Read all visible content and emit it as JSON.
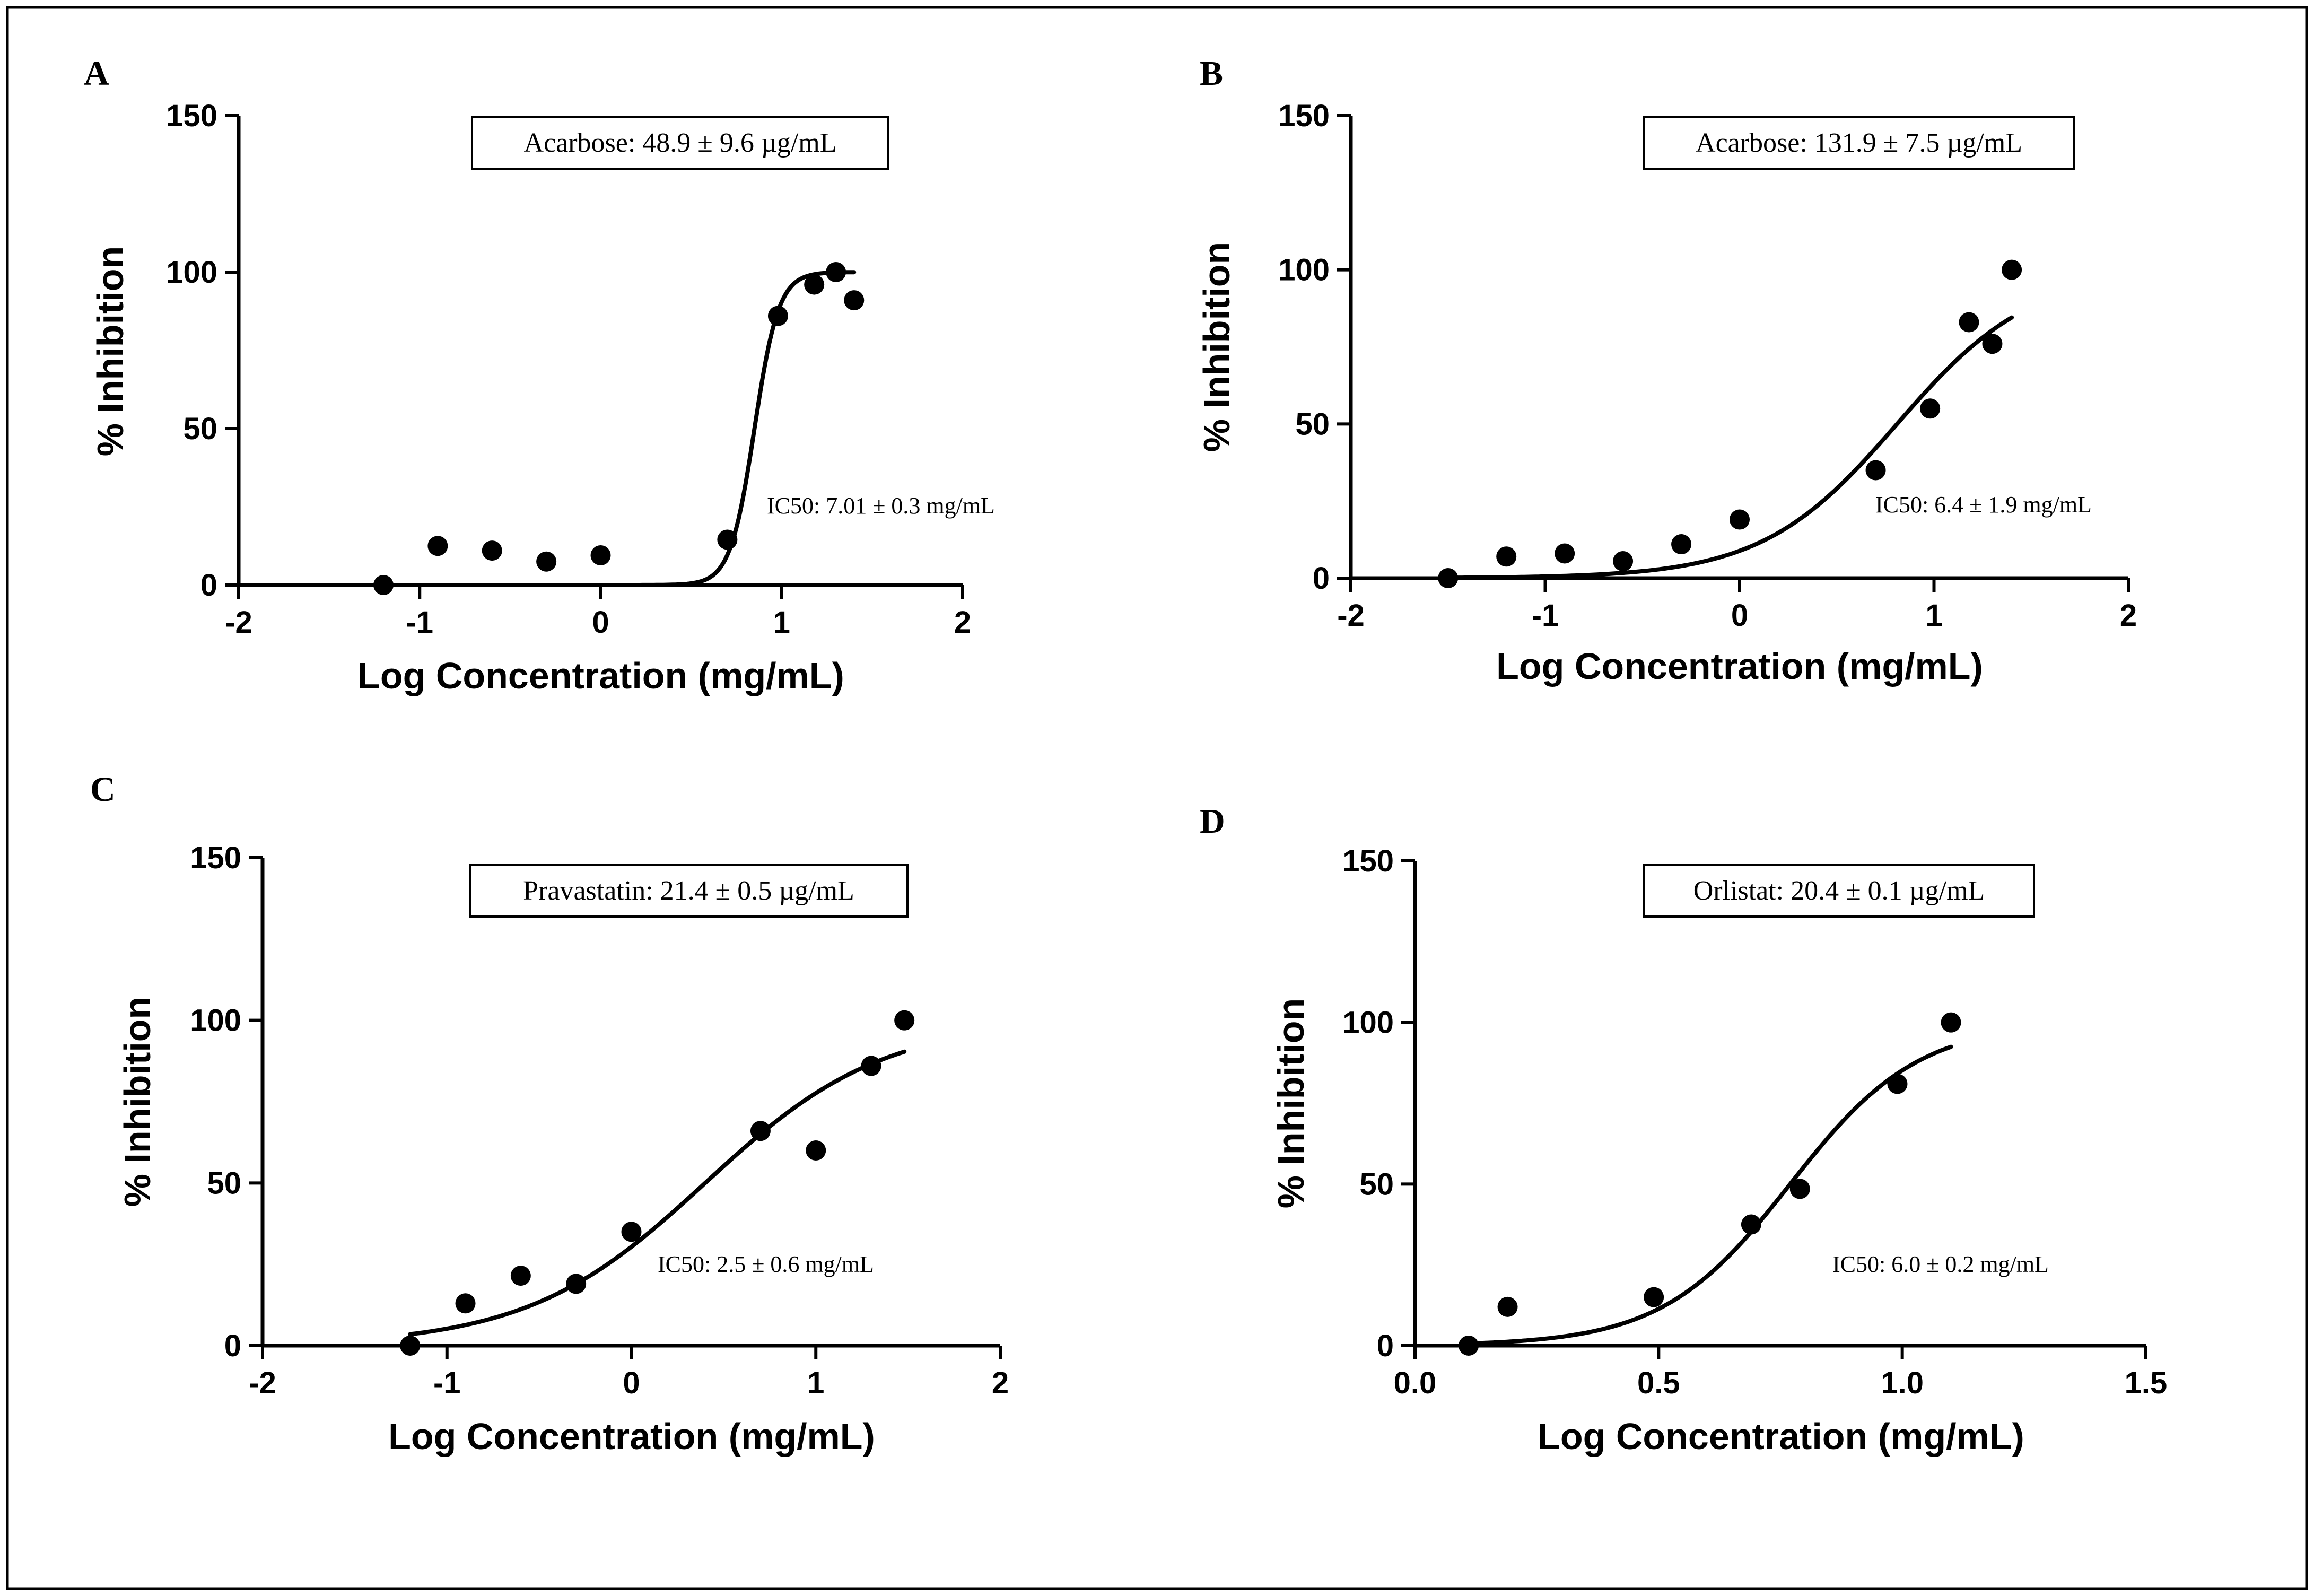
{
  "chart_data": [
    {
      "type": "scatter",
      "panel_label": "A",
      "xlabel": "Log Concentration (mg/mL)",
      "ylabel": "% Inhibition",
      "xlim": [
        -2,
        2
      ],
      "ylim": [
        0,
        150
      ],
      "xticks": [
        -2,
        -1,
        0,
        1,
        2
      ],
      "xtick_labels": [
        "-2",
        "-1",
        "0",
        "1",
        "2"
      ],
      "yticks": [
        0,
        50,
        100,
        150
      ],
      "ytick_labels": [
        "0",
        "50",
        "100",
        "150"
      ],
      "box_label": "Acarbose: 48.9 ± 9.6 µg/mL",
      "ic50_label": "IC50: 7.01 ± 0.3 mg/mL",
      "points": {
        "x": [
          -1.2,
          -0.9,
          -0.6,
          -0.3,
          0.0,
          0.7,
          0.98,
          1.18,
          1.3,
          1.4
        ],
        "y": [
          0,
          12.5,
          11,
          7.5,
          9.5,
          14.5,
          86,
          96,
          100,
          91
        ]
      },
      "fit": {
        "bottom": 0,
        "top": 100,
        "logIC50": 0.85,
        "hill": 6.5,
        "x_range": [
          -1.2,
          1.4
        ]
      }
    },
    {
      "type": "scatter",
      "panel_label": "B",
      "xlabel": "Log Concentration (mg/mL)",
      "ylabel": "% Inhibition",
      "xlim": [
        -2,
        2
      ],
      "ylim": [
        0,
        150
      ],
      "xticks": [
        -2,
        -1,
        0,
        1,
        2
      ],
      "xtick_labels": [
        "-2",
        "-1",
        "0",
        "1",
        "2"
      ],
      "yticks": [
        0,
        50,
        100,
        150
      ],
      "ytick_labels": [
        "0",
        "50",
        "100",
        "150"
      ],
      "box_label": "Acarbose: 131.9 ± 7.5 µg/mL",
      "ic50_label": "IC50: 6.4 ± 1.9 mg/mL",
      "points": {
        "x": [
          -1.5,
          -1.2,
          -0.9,
          -0.6,
          -0.3,
          0.0,
          0.7,
          0.98,
          1.18,
          1.3,
          1.4
        ],
        "y": [
          0,
          7,
          8,
          5.5,
          11,
          19,
          35,
          55,
          83,
          76,
          100
        ]
      },
      "fit": {
        "bottom": 0,
        "top": 100,
        "logIC50": 0.81,
        "hill": 1.25,
        "x_range": [
          -1.5,
          1.4
        ]
      }
    },
    {
      "type": "scatter",
      "panel_label": "C",
      "xlabel": "Log Concentration (mg/mL)",
      "ylabel": "% Inhibition",
      "xlim": [
        -2,
        2
      ],
      "ylim": [
        0,
        150
      ],
      "xticks": [
        -2,
        -1,
        0,
        1,
        2
      ],
      "xtick_labels": [
        "-2",
        "-1",
        "0",
        "1",
        "2"
      ],
      "yticks": [
        0,
        50,
        100,
        150
      ],
      "ytick_labels": [
        "0",
        "50",
        "100",
        "150"
      ],
      "box_label": "Pravastatin: 21.4 ± 0.5 µg/mL",
      "ic50_label": "IC50: 2.5 ± 0.6 mg/mL",
      "points": {
        "x": [
          -1.2,
          -0.9,
          -0.6,
          -0.3,
          0.0,
          0.7,
          1.0,
          1.3,
          1.48
        ],
        "y": [
          0,
          13,
          21.5,
          19,
          35,
          66,
          60,
          86,
          100
        ]
      },
      "fit": {
        "bottom": 0,
        "top": 100,
        "logIC50": 0.4,
        "hill": 0.9,
        "x_range": [
          -1.2,
          1.48
        ]
      }
    },
    {
      "type": "scatter",
      "panel_label": "D",
      "xlabel": "Log Concentration (mg/mL)",
      "ylabel": "% Inhibition",
      "xlim": [
        0.0,
        1.5
      ],
      "ylim": [
        0,
        150
      ],
      "xticks": [
        0.0,
        0.5,
        1.0,
        1.5
      ],
      "xtick_labels": [
        "0.0",
        "0.5",
        "1.0",
        "1.5"
      ],
      "yticks": [
        0,
        50,
        100,
        150
      ],
      "ytick_labels": [
        "0",
        "50",
        "100",
        "150"
      ],
      "box_label": "Orlistat: 20.4 ± 0.1 µg/mL",
      "ic50_label": "IC50: 6.0 ± 0.2 mg/mL",
      "points": {
        "x": [
          0.11,
          0.19,
          0.49,
          0.69,
          0.79,
          0.99,
          1.1
        ],
        "y": [
          0,
          12,
          15,
          37.5,
          48.5,
          81,
          100
        ]
      },
      "fit": {
        "bottom": 0,
        "top": 100,
        "logIC50": 0.77,
        "hill": 3.3,
        "x_range": [
          0.11,
          1.1
        ]
      }
    }
  ]
}
